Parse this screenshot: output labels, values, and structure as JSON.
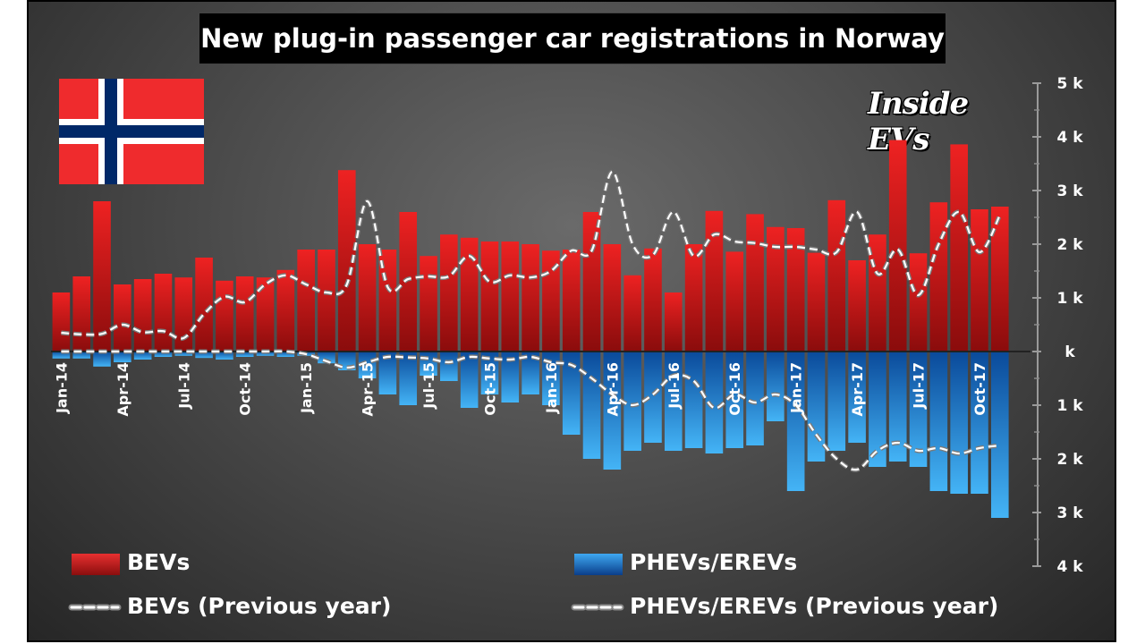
{
  "title": "New plug-in passenger car registrations in Norway",
  "brand": "Inside EVs",
  "colors": {
    "bev": "#d01818",
    "phev": "#1e8fe0",
    "prev_line": "#ffffff",
    "flag_red": "#ef2b2d",
    "flag_blue": "#002868"
  },
  "legend": {
    "bev": "BEVs",
    "phev": "PHEVs/EREVs",
    "bev_prev": "BEVs (Previous year)",
    "phev_prev": "PHEVs/EREVs (Previous year)"
  },
  "chart_data": {
    "type": "bar",
    "categories": [
      "Jan-14",
      "Feb-14",
      "Mar-14",
      "Apr-14",
      "May-14",
      "Jun-14",
      "Jul-14",
      "Aug-14",
      "Sep-14",
      "Oct-14",
      "Nov-14",
      "Dec-14",
      "Jan-15",
      "Feb-15",
      "Mar-15",
      "Apr-15",
      "May-15",
      "Jun-15",
      "Jul-15",
      "Aug-15",
      "Sep-15",
      "Oct-15",
      "Nov-15",
      "Dec-15",
      "Jan-16",
      "Feb-16",
      "Mar-16",
      "Apr-16",
      "May-16",
      "Jun-16",
      "Jul-16",
      "Aug-16",
      "Sep-16",
      "Oct-16",
      "Nov-16",
      "Dec-16",
      "Jan-17",
      "Feb-17",
      "Mar-17",
      "Apr-17",
      "May-17",
      "Jun-17",
      "Jul-17",
      "Aug-17",
      "Sep-17",
      "Oct-17",
      "Nov-17",
      "Dec-17"
    ],
    "tick_labels": [
      "Jan-14",
      "Apr-14",
      "Jul-14",
      "Oct-14",
      "Jan-15",
      "Apr-15",
      "Jul-15",
      "Oct-15",
      "Jan-16",
      "Apr-16",
      "Jul-16",
      "Oct-16",
      "Jan-17",
      "Apr-17",
      "Jul-17",
      "Oct-17"
    ],
    "y_tick_labels": [
      "5 k",
      "4 k",
      "3 k",
      "2 k",
      "1 k",
      "k",
      "1 k",
      "2 k",
      "3 k",
      "4 k"
    ],
    "ylim": [
      -4000,
      5000
    ],
    "series": [
      {
        "name": "BEVs",
        "values": [
          1100,
          1400,
          2800,
          1250,
          1350,
          1450,
          1380,
          1750,
          1320,
          1400,
          1380,
          1520,
          1900,
          1900,
          3380,
          2000,
          1900,
          2600,
          1780,
          2180,
          2120,
          2050,
          2050,
          2000,
          1880,
          1900,
          2600,
          2000,
          1420,
          1920,
          1100,
          2000,
          2620,
          1860,
          2560,
          2320,
          2300,
          1840,
          2820,
          1700,
          2180,
          3940,
          1830,
          2780,
          3860,
          2650,
          2700,
          0
        ]
      },
      {
        "name": "PHEVs/EREVs",
        "values": [
          -130,
          -130,
          -280,
          -200,
          -150,
          -100,
          -80,
          -120,
          -150,
          -100,
          -80,
          -100,
          -80,
          -220,
          -350,
          -500,
          -800,
          -1000,
          -450,
          -550,
          -1050,
          -800,
          -950,
          -800,
          -1000,
          -1550,
          -2000,
          -2200,
          -1850,
          -1700,
          -1850,
          -1800,
          -1900,
          -1800,
          -1750,
          -1300,
          -2600,
          -2050,
          -1850,
          -1700,
          -2150,
          -2050,
          -2150,
          -2600,
          -2650,
          -2650,
          -3100,
          0
        ]
      },
      {
        "name": "BEVs (Previous year)",
        "values": [
          350,
          320,
          330,
          500,
          360,
          380,
          250,
          700,
          1020,
          920,
          1250,
          1420,
          1250,
          1100,
          1250,
          2800,
          1200,
          1350,
          1400,
          1400,
          1780,
          1300,
          1420,
          1380,
          1500,
          1880,
          1880,
          3350,
          2000,
          1800,
          2600,
          1780,
          2180,
          2050,
          2020,
          1950,
          1950,
          1900,
          1850,
          2600,
          1450,
          1900,
          1050,
          2000,
          2600,
          1850,
          2540,
          0
        ]
      },
      {
        "name": "PHEVs/EREVs (Previous year)",
        "values": [
          0,
          0,
          0,
          0,
          0,
          0,
          0,
          0,
          0,
          0,
          0,
          0,
          -50,
          -180,
          -300,
          -200,
          -100,
          -110,
          -130,
          -200,
          -100,
          -130,
          -150,
          -100,
          -200,
          -250,
          -500,
          -800,
          -1000,
          -800,
          -450,
          -550,
          -1050,
          -800,
          -950,
          -800,
          -1000,
          -1550,
          -2000,
          -2200,
          -1850,
          -1700,
          -1850,
          -1800,
          -1900,
          -1800,
          -1750,
          0
        ]
      }
    ],
    "legend_position": "bottom"
  }
}
